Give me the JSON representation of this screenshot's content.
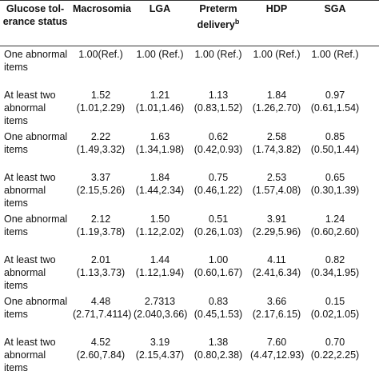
{
  "table": {
    "header": [
      "Glucose tol­erance status",
      "Macrosomia",
      "LGA",
      "Preterm delivery",
      "HDP",
      "SGA"
    ],
    "header_superscripts": {
      "3": "b"
    },
    "rows": [
      {
        "status": "One abnormal items",
        "cells": [
          [
            "1.00(Ref.)"
          ],
          [
            "1.00 (Ref.)"
          ],
          [
            "1.00 (Ref.)"
          ],
          [
            "1.00 (Ref.)"
          ],
          [
            "1.00 (Ref.)"
          ]
        ]
      },
      {
        "status": "At least two abnormal items",
        "cells": [
          [
            "1.52",
            "(1.01,2.29)"
          ],
          [
            "1.21",
            "(1.01,1.46)"
          ],
          [
            "1.13",
            "(0.83,1.52)"
          ],
          [
            "1.84",
            "(1.26,2.70)"
          ],
          [
            "0.97",
            "(0.61,1.54)"
          ]
        ]
      },
      {
        "status": "One abnormal items",
        "cells": [
          [
            "2.22",
            "(1.49,3.32)"
          ],
          [
            "1.63",
            "(1.34,1.98)"
          ],
          [
            "0.62",
            "(0.42,0.93)"
          ],
          [
            "2.58",
            "(1.74,3.82)"
          ],
          [
            "0.85",
            "(0.50,1.44)"
          ]
        ]
      },
      {
        "status": "At least two abnormal items",
        "cells": [
          [
            "3.37",
            "(2.15,5.26)"
          ],
          [
            "1.84",
            "(1.44,2.34)"
          ],
          [
            "0.75",
            "(0.46,1.22)"
          ],
          [
            "2.53",
            "(1.57,4.08)"
          ],
          [
            "0.65",
            "(0.30,1.39)"
          ]
        ]
      },
      {
        "status": "One abnormal items",
        "cells": [
          [
            "2.12",
            "(1.19,3.78)"
          ],
          [
            "1.50",
            "(1.12,2.02)"
          ],
          [
            "0.51",
            "(0.26,1.03)"
          ],
          [
            "3.91",
            "(2.29,5.96)"
          ],
          [
            "1.24",
            "(0.60,2.60)"
          ]
        ]
      },
      {
        "status": "At least two abnormal items",
        "cells": [
          [
            "2.01",
            "(1.13,3.73)"
          ],
          [
            "1.44",
            "(1.12,1.94)"
          ],
          [
            "1.00",
            "(0.60,1.67)"
          ],
          [
            "4.11",
            "(2.41,6.34)"
          ],
          [
            "0.82",
            "(0.34,1.95)"
          ]
        ]
      },
      {
        "status": "One abnormal items",
        "cells": [
          [
            "4.48",
            "(2.71,7.4114)"
          ],
          [
            "2.7313",
            "(2.040,3.66)"
          ],
          [
            "0.83",
            "(0.45,1.53)"
          ],
          [
            "3.66",
            "(2.17,6.15)"
          ],
          [
            "0.15",
            "(0.02,1.05)"
          ]
        ]
      },
      {
        "status": "At least two abnormal items",
        "cells": [
          [
            "4.52",
            "(2.60,7.84)"
          ],
          [
            "3.19",
            "(2.15,4.37)"
          ],
          [
            "1.38",
            "(0.80,2.38)"
          ],
          [
            "7.60",
            "(4.47,12.93)"
          ],
          [
            "0.70",
            "(0.22,2.25)"
          ]
        ]
      }
    ]
  }
}
